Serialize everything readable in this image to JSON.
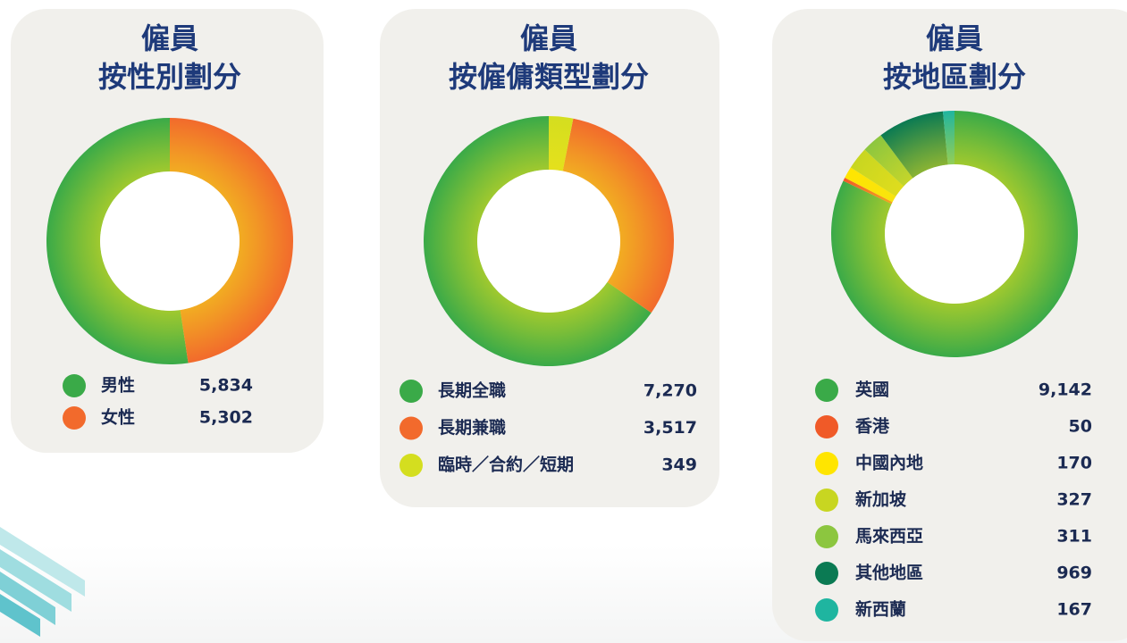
{
  "chart_data": [
    {
      "type": "donut",
      "title": "僱員",
      "subtitle": "按性別劃分",
      "direction": "counterclockwise",
      "categories": [
        "男性",
        "女性"
      ],
      "values": [
        5834,
        5302
      ],
      "value_labels": [
        "5,834",
        "5,302"
      ],
      "colors": [
        "#3aaa48",
        "#f26a2c"
      ]
    },
    {
      "type": "donut",
      "title": "僱員",
      "subtitle": "按僱傭類型劃分",
      "direction": "counterclockwise",
      "categories": [
        "長期全職",
        "長期兼職",
        "臨時／合約／短期"
      ],
      "values": [
        7270,
        3517,
        349
      ],
      "value_labels": [
        "7,270",
        "3,517",
        "349"
      ],
      "colors": [
        "#3aaa48",
        "#f26a2c",
        "#d4de1f"
      ]
    },
    {
      "type": "donut",
      "title": "僱員",
      "subtitle": "按地區劃分",
      "direction": "clockwise",
      "categories": [
        "英國",
        "香港",
        "中國內地",
        "新加坡",
        "馬來西亞",
        "其他地區",
        "新西蘭"
      ],
      "values": [
        9142,
        50,
        170,
        327,
        311,
        969,
        167
      ],
      "value_labels": [
        "9,142",
        "50",
        "170",
        "327",
        "311",
        "969",
        "167"
      ],
      "colors": [
        "#3aaa48",
        "#f05a28",
        "#ffe500",
        "#c8d621",
        "#8cc63f",
        "#0b7a53",
        "#1fb5a0"
      ]
    }
  ]
}
